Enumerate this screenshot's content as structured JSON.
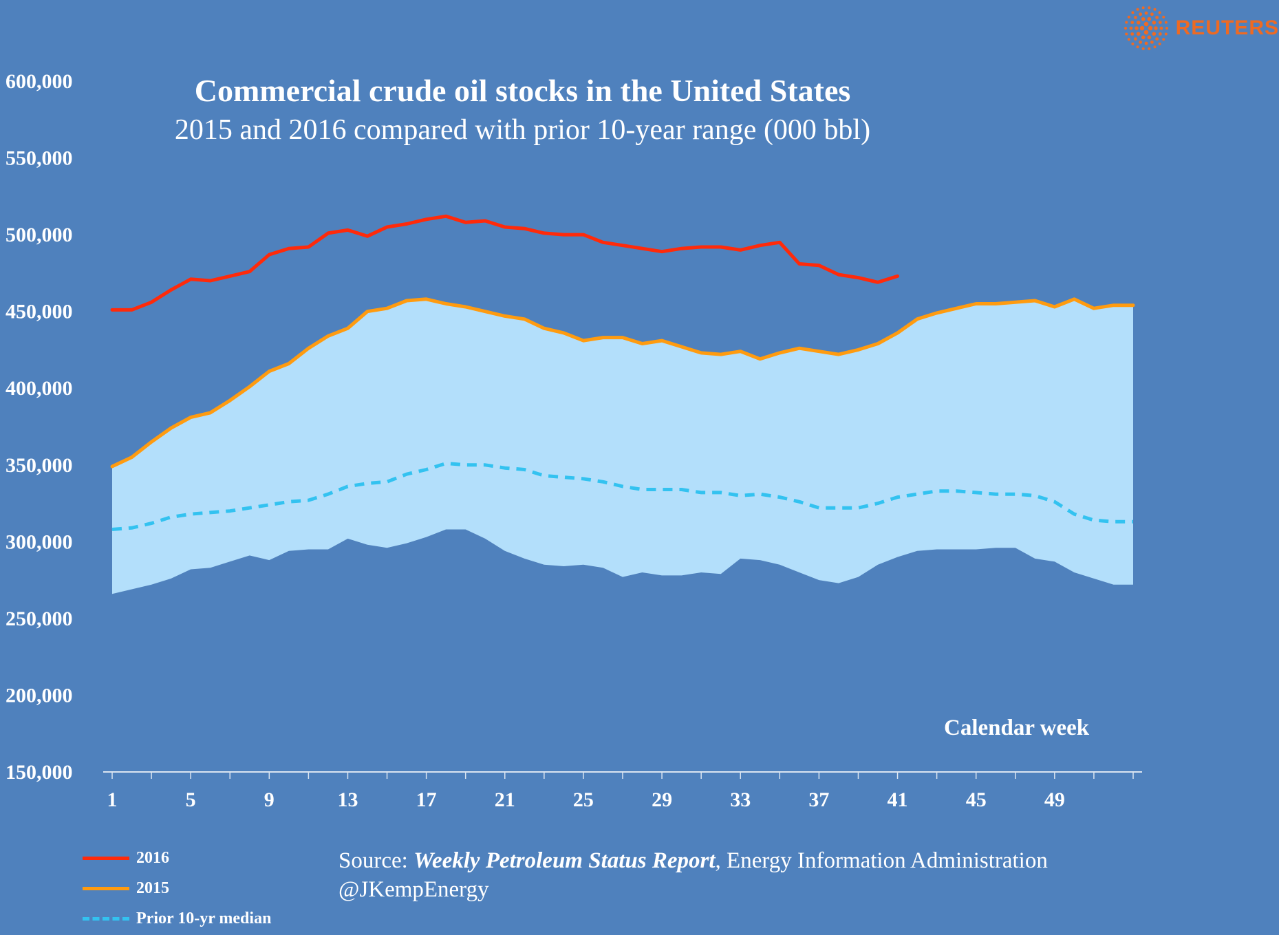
{
  "logo": {
    "text": "REUTERS",
    "icon": "reuters-dot-globe-icon"
  },
  "source": {
    "prefix": "Source: ",
    "report": "Weekly Petroleum Status Report",
    "agency": ", Energy Information Administration",
    "handle": "@JKempEnergy"
  },
  "chart_data": {
    "type": "line",
    "title": "Commercial crude oil stocks in the United States",
    "subtitle": "2015 and 2016 compared with prior 10-year range (000 bbl)",
    "xlabel": "Calendar week",
    "ylabel": "",
    "ylim": [
      150000,
      600000
    ],
    "xlim": [
      1,
      53
    ],
    "yticks": [
      150000,
      200000,
      250000,
      300000,
      350000,
      400000,
      450000,
      500000,
      550000,
      600000
    ],
    "ytick_labels": [
      "150,000",
      "200,000",
      "250,000",
      "300,000",
      "350,000",
      "400,000",
      "450,000",
      "500,000",
      "550,000",
      "600,000"
    ],
    "xticks": [
      1,
      5,
      9,
      13,
      17,
      21,
      25,
      29,
      33,
      37,
      41,
      45,
      49
    ],
    "xtick_labels": [
      "1",
      "5",
      "9",
      "13",
      "17",
      "21",
      "25",
      "29",
      "33",
      "37",
      "41",
      "45",
      "49"
    ],
    "grid": false,
    "legend_position": "bottom-left",
    "colors": {
      "background": "#4f81bd",
      "range": "#b3dffb",
      "s2016": "#ff2a0a",
      "s2015": "#ff9b0f",
      "median": "#33c2f0",
      "text": "#ffffff"
    },
    "range_band": {
      "weeks": [
        1,
        2,
        3,
        4,
        5,
        6,
        7,
        8,
        9,
        10,
        11,
        12,
        13,
        14,
        15,
        16,
        17,
        18,
        19,
        20,
        21,
        22,
        23,
        24,
        25,
        26,
        27,
        28,
        29,
        30,
        31,
        32,
        33,
        34,
        35,
        36,
        37,
        38,
        39,
        40,
        41,
        42,
        43,
        44,
        45,
        46,
        47,
        48,
        49,
        50,
        51,
        52,
        53
      ],
      "low": [
        266000,
        269000,
        272000,
        276000,
        282000,
        283000,
        287000,
        291000,
        288000,
        294000,
        295000,
        295000,
        302000,
        298000,
        296000,
        299000,
        303000,
        308000,
        308000,
        302000,
        294000,
        289000,
        285000,
        284000,
        285000,
        283000,
        277000,
        280000,
        278000,
        278000,
        280000,
        279000,
        289000,
        288000,
        285000,
        280000,
        275000,
        273000,
        277000,
        285000,
        290000,
        294000,
        295000,
        295000,
        295000,
        296000,
        296000,
        289000,
        287000,
        280000,
        276000,
        272000,
        272000
      ]
    },
    "series": [
      {
        "name": "2016",
        "x": [
          1,
          2,
          3,
          4,
          5,
          6,
          7,
          8,
          9,
          10,
          11,
          12,
          13,
          14,
          15,
          16,
          17,
          18,
          19,
          20,
          21,
          22,
          23,
          24,
          25,
          26,
          27,
          28,
          29,
          30,
          31,
          32,
          33,
          34,
          35,
          36,
          37,
          38,
          39,
          40,
          41
        ],
        "values": [
          451000,
          451000,
          456000,
          464000,
          471000,
          470000,
          473000,
          476000,
          487000,
          491000,
          492000,
          501000,
          503000,
          499000,
          505000,
          507000,
          510000,
          512000,
          508000,
          509000,
          505000,
          504000,
          501000,
          500000,
          500000,
          495000,
          493000,
          491000,
          489000,
          491000,
          492000,
          492000,
          490000,
          493000,
          495000,
          481000,
          480000,
          474000,
          472000,
          469000,
          473000
        ]
      },
      {
        "name": "2015",
        "x": [
          1,
          2,
          3,
          4,
          5,
          6,
          7,
          8,
          9,
          10,
          11,
          12,
          13,
          14,
          15,
          16,
          17,
          18,
          19,
          20,
          21,
          22,
          23,
          24,
          25,
          26,
          27,
          28,
          29,
          30,
          31,
          32,
          33,
          34,
          35,
          36,
          37,
          38,
          39,
          40,
          41,
          42,
          43,
          44,
          45,
          46,
          47,
          48,
          49,
          50,
          51,
          52,
          53
        ],
        "values": [
          349000,
          355000,
          365000,
          374000,
          381000,
          384000,
          392000,
          401000,
          411000,
          416000,
          426000,
          434000,
          439000,
          450000,
          452000,
          457000,
          458000,
          455000,
          453000,
          450000,
          447000,
          445000,
          439000,
          436000,
          431000,
          433000,
          433000,
          429000,
          431000,
          427000,
          423000,
          422000,
          424000,
          419000,
          423000,
          426000,
          424000,
          422000,
          425000,
          429000,
          436000,
          445000,
          449000,
          452000,
          455000,
          455000,
          456000,
          457000,
          453000,
          458000,
          452000,
          454000,
          454000
        ]
      },
      {
        "name": "Prior 10-yr median",
        "x": [
          1,
          2,
          3,
          4,
          5,
          6,
          7,
          8,
          9,
          10,
          11,
          12,
          13,
          14,
          15,
          16,
          17,
          18,
          19,
          20,
          21,
          22,
          23,
          24,
          25,
          26,
          27,
          28,
          29,
          30,
          31,
          32,
          33,
          34,
          35,
          36,
          37,
          38,
          39,
          40,
          41,
          42,
          43,
          44,
          45,
          46,
          47,
          48,
          49,
          50,
          51,
          52,
          53
        ],
        "values": [
          308000,
          309000,
          312000,
          316000,
          318000,
          319000,
          320000,
          322000,
          324000,
          326000,
          327000,
          331000,
          336000,
          338000,
          339000,
          344000,
          347000,
          351000,
          350000,
          350000,
          348000,
          347000,
          343000,
          342000,
          341000,
          339000,
          336000,
          334000,
          334000,
          334000,
          332000,
          332000,
          330000,
          331000,
          329000,
          326000,
          322000,
          322000,
          322000,
          325000,
          329000,
          331000,
          333000,
          333000,
          332000,
          331000,
          331000,
          330000,
          326000,
          318000,
          314000,
          313000,
          313000
        ]
      }
    ]
  }
}
